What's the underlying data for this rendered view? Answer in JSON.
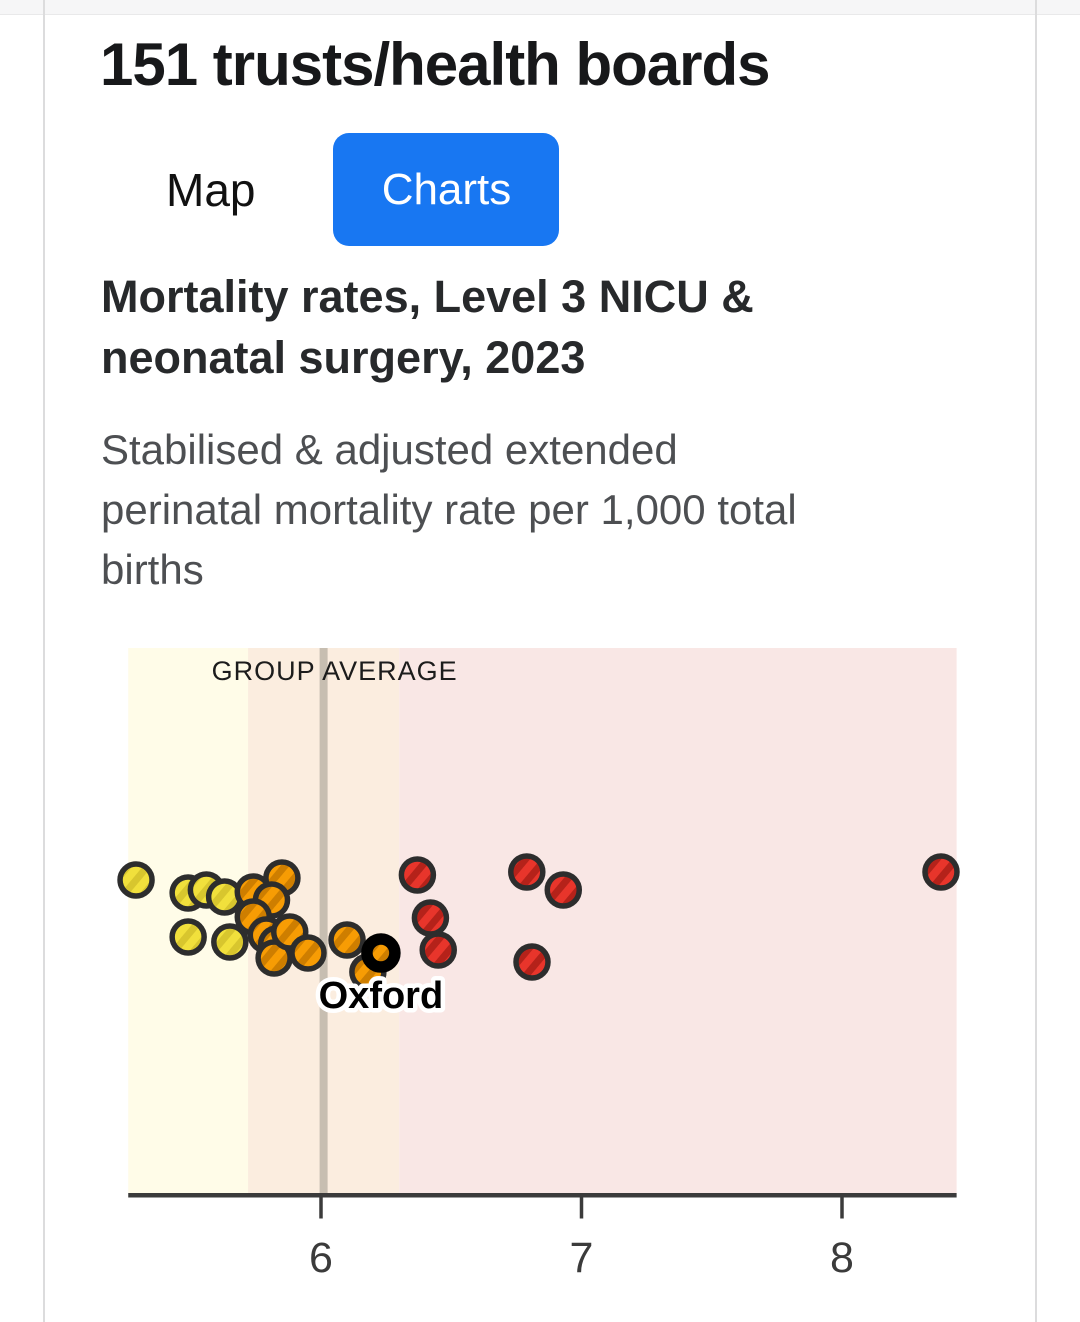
{
  "header": {
    "title": "151 trusts/health boards"
  },
  "tabs": [
    {
      "label": "Map",
      "active": false
    },
    {
      "label": "Charts",
      "active": true
    }
  ],
  "view": {
    "heading_lines": [
      "Mortality rates, Level 3 NICU &",
      "neonatal surgery, 2023"
    ],
    "subtitle_lines": [
      "Stabilised & adjusted extended",
      "perinatal mortality rate per 1,000 total",
      "births"
    ]
  },
  "colors": {
    "accent_blue": "#1877F2",
    "axis": "#3b3b3b",
    "group_average_line": "#c7beb1",
    "band_lower": "#FFFCE8",
    "band_middle": "#FBEDDF",
    "band_higher": "#F9E7E5"
  },
  "chart_data": {
    "type": "scatter",
    "title": "Mortality rates, Level 3 NICU & neonatal surgery, 2023",
    "xlabel": "Stabilised & adjusted extended perinatal mortality rate per 1,000 total births",
    "ylabel": "",
    "x_ticks": [
      6,
      7,
      8
    ],
    "x_domain": [
      5.26,
      8.44
    ],
    "grid": false,
    "group_average": {
      "label": "GROUP AVERAGE",
      "value": 6.01
    },
    "bands": [
      {
        "name": "lower",
        "from": 5.26,
        "to": 5.72,
        "color": "#FFFCE8"
      },
      {
        "name": "middle",
        "from": 5.72,
        "to": 6.3,
        "color": "#FBEDDF"
      },
      {
        "name": "higher",
        "from": 6.3,
        "to": 8.44,
        "color": "#F9E7E5"
      }
    ],
    "dot_styles": {
      "yellow": {
        "fill": "#F1E03C",
        "stripe": "#D8C62E"
      },
      "orange": {
        "fill": "#F79C04",
        "stripe": "#CE7E00"
      },
      "red": {
        "fill": "#E8352B",
        "stripe": "#B5221A"
      },
      "outline": "#2D2D2D"
    },
    "points": [
      {
        "value": 5.29,
        "y": 240,
        "group": "yellow"
      },
      {
        "value": 5.49,
        "y": 253,
        "group": "yellow"
      },
      {
        "value": 5.56,
        "y": 250,
        "group": "yellow"
      },
      {
        "value": 5.63,
        "y": 257,
        "group": "yellow"
      },
      {
        "value": 5.49,
        "y": 297,
        "group": "yellow"
      },
      {
        "value": 5.65,
        "y": 302,
        "group": "yellow"
      },
      {
        "value": 5.74,
        "y": 252,
        "group": "orange"
      },
      {
        "value": 5.85,
        "y": 238,
        "group": "orange"
      },
      {
        "value": 5.81,
        "y": 260,
        "group": "orange"
      },
      {
        "value": 5.74,
        "y": 277,
        "group": "orange"
      },
      {
        "value": 5.79,
        "y": 295,
        "group": "orange"
      },
      {
        "value": 5.83,
        "y": 304,
        "group": "orange"
      },
      {
        "value": 5.82,
        "y": 318,
        "group": "orange"
      },
      {
        "value": 5.88,
        "y": 292,
        "group": "orange"
      },
      {
        "value": 5.95,
        "y": 313,
        "group": "orange"
      },
      {
        "value": 6.1,
        "y": 300,
        "group": "orange"
      },
      {
        "value": 6.18,
        "y": 332,
        "group": "orange"
      },
      {
        "value": 6.37,
        "y": 235,
        "group": "red"
      },
      {
        "value": 6.42,
        "y": 278,
        "group": "red"
      },
      {
        "value": 6.45,
        "y": 310,
        "group": "red"
      },
      {
        "value": 6.79,
        "y": 232,
        "group": "red"
      },
      {
        "value": 6.93,
        "y": 250,
        "group": "red"
      },
      {
        "value": 6.81,
        "y": 322,
        "group": "red"
      },
      {
        "value": 8.38,
        "y": 232,
        "group": "red"
      }
    ],
    "highlight": {
      "name": "Oxford",
      "value": 6.23,
      "y": 313,
      "group": "orange"
    }
  }
}
